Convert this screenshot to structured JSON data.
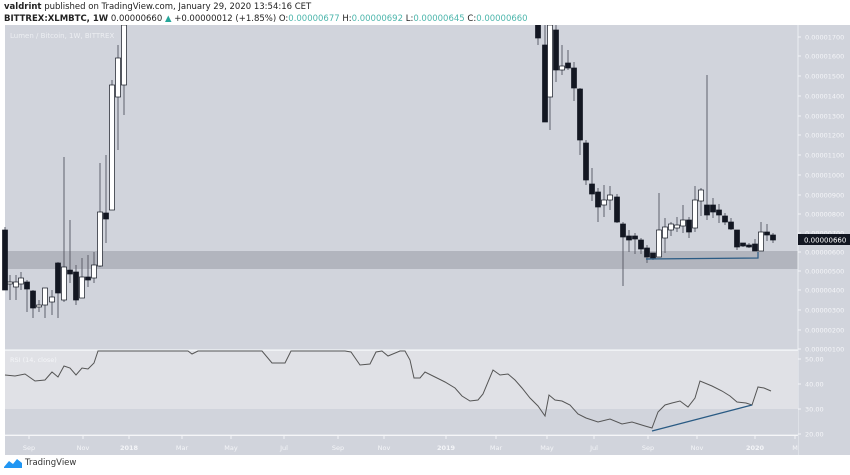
{
  "header": {
    "author": "valdrint",
    "published_text": " published on TradingView.com, January 29, 2020 13:54:16 CET",
    "symbol": "BITTREX:XLMBTC, 1W",
    "last": "0.00000660",
    "change": "+0.00000012 (+1.85%)",
    "o_label": "O:",
    "o": "0.00000677",
    "h_label": "H:",
    "h": "0.00000692",
    "l_label": "L:",
    "l": "0.00000645",
    "c_label": "C:",
    "c": "0.00000660"
  },
  "chart": {
    "legend": "Lumen / Bitcoin, 1W, BITTREX",
    "current_price_label": "0.00000660",
    "price_axis": [
      "0.00001700",
      "0.00001600",
      "0.00001500",
      "0.00001400",
      "0.00001300",
      "0.00001200",
      "0.00001100",
      "0.00001000",
      "0.00000900",
      "0.00000800",
      "0.00000700",
      "0.00000600",
      "0.00000500",
      "0.00000400",
      "0.00000300",
      "0.00000200",
      "0.00000100"
    ],
    "rsi_legend": "RSI (14, close)",
    "rsi_axis": [
      "50.00",
      "40.00",
      "30.00",
      "20.00"
    ],
    "time_axis": [
      "Sep",
      "Nov",
      "2018",
      "Mar",
      "May",
      "Jul",
      "Sep",
      "Nov",
      "2019",
      "Mar",
      "May",
      "Jul",
      "Sep",
      "Nov",
      "2020",
      "M"
    ],
    "colors": {
      "background": "#d1d4dc",
      "support_zone": "#b2b5be",
      "rsi_band": "#e0e1e6",
      "trendline": "#2a5b84",
      "up_arrow": "#26a69a",
      "ohlc_values": "#4db6ac",
      "price_tag_bg": "#131722"
    }
  },
  "footer": {
    "brand": "TradingView"
  }
}
